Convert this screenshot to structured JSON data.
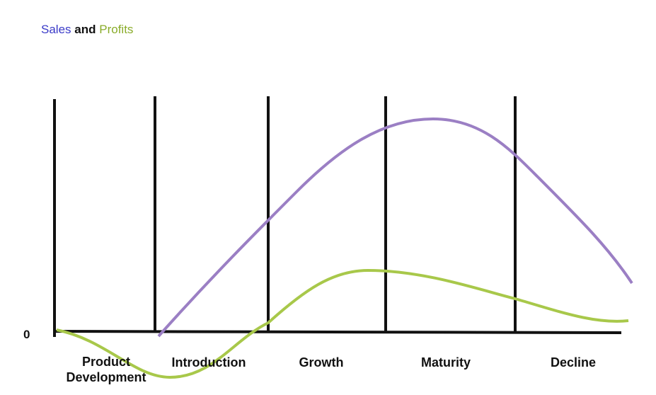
{
  "title": {
    "sales": "Sales",
    "and": "and",
    "profits": "Profits"
  },
  "axis": {
    "zero": "0"
  },
  "stages": [
    "Product Development",
    "Introduction",
    "Growth",
    "Maturity",
    "Decline"
  ]
}
